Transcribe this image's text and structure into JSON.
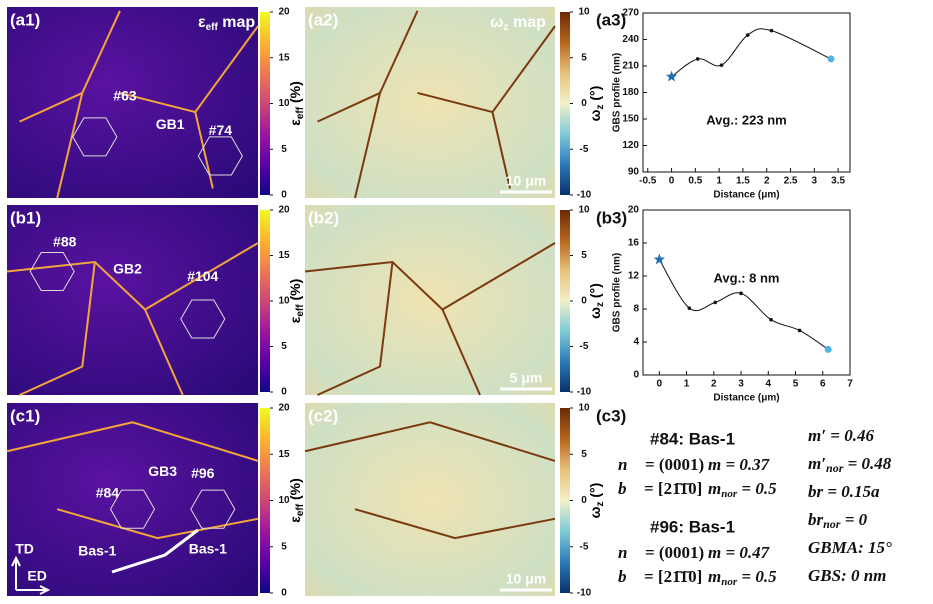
{
  "maps": {
    "eff_title": {
      "main": "ε",
      "sub": "eff",
      "tail": " map"
    },
    "wz_title": {
      "main": "ω",
      "sub": "z",
      "tail": " map"
    },
    "rows": [
      {
        "labels": [
          "(a1)",
          "(a2)",
          "(a3)"
        ],
        "annotations": [
          "#63",
          "GB1",
          "#74"
        ],
        "scale_bar": "10 μm"
      },
      {
        "labels": [
          "(b1)",
          "(b2)",
          "(b3)"
        ],
        "annotations": [
          "#88",
          "GB2",
          "#104"
        ],
        "scale_bar": "5 μm"
      },
      {
        "labels": [
          "(c1)",
          "(c2)",
          "(c3)"
        ],
        "annotations": [
          "#84",
          "GB3",
          "#96",
          "Bas-1",
          "Bas-1",
          "TD",
          "ED"
        ],
        "scale_bar": "10 μm"
      }
    ]
  },
  "colorbars": [
    {
      "label": {
        "main": "ε",
        "sub": "eff",
        "tail": " (%)"
      },
      "lim": [
        0,
        20
      ],
      "ticks": [
        0,
        5,
        10,
        15,
        20
      ],
      "colors": [
        "#0d0887",
        "#5c01a6",
        "#9c179e",
        "#cc4778",
        "#ed7953",
        "#fdb42f",
        "#f0f921"
      ]
    },
    {
      "label": {
        "main": "ω",
        "sub": "z",
        "tail": " (°)"
      },
      "lim": [
        -10,
        10
      ],
      "ticks": [
        -10,
        -5,
        0,
        5,
        10
      ],
      "colors": [
        "#08306b",
        "#2b7bba",
        "#7ecbd8",
        "#f2f0c8",
        "#e8c27a",
        "#b8651c",
        "#6b2a05"
      ]
    }
  ],
  "chart_data": [
    {
      "type": "line",
      "x": [
        0,
        0.55,
        1.05,
        1.6,
        2.1,
        3.35
      ],
      "values": [
        198,
        218,
        211,
        245,
        250,
        218
      ],
      "xlim": [
        -0.6,
        3.75
      ],
      "ylim": [
        90,
        270
      ],
      "xticks": [
        -0.5,
        0,
        0.5,
        1,
        1.5,
        2,
        2.5,
        3,
        3.5
      ],
      "yticks": [
        90,
        120,
        150,
        180,
        210,
        240,
        270
      ],
      "xlabel": "Distance (μm)",
      "ylabel": "GBS profile (nm)",
      "annotation": "Avg.: 223 nm",
      "line_color": "#111111",
      "start_color": "#1f6fb5",
      "end_color": "#4fb3e0"
    },
    {
      "type": "line",
      "x": [
        0,
        1.1,
        2.05,
        3,
        4.1,
        5.15,
        6.2
      ],
      "values": [
        14,
        8.1,
        8.8,
        9.9,
        6.7,
        5.4,
        3.1
      ],
      "xlim": [
        -0.6,
        7
      ],
      "ylim": [
        0,
        20
      ],
      "xticks": [
        0,
        1,
        2,
        3,
        4,
        5,
        6,
        7
      ],
      "yticks": [
        0,
        4,
        8,
        12,
        16,
        20
      ],
      "xlabel": "Distance (μm)",
      "ylabel": "GBS profile (nm)",
      "annotation": "Avg.: 8 nm",
      "line_color": "#111111",
      "start_color": "#1f6fb5",
      "end_color": "#4fb3e0"
    }
  ],
  "c3": {
    "grains": [
      {
        "title": "#84: Bas-1",
        "n_sym": "n⃗",
        "n_eq": " = (0001)",
        "m": "m = 0.37",
        "b_sym": "b⃗",
        "b_eq": " = [21̄1̄0]",
        "mnor": {
          "main": "m",
          "sub": "nor",
          "tail": " = 0.5"
        }
      },
      {
        "title": "#96: Bas-1",
        "n_sym": "n⃗",
        "n_eq": " = (0001)",
        "m": "m = 0.47",
        "b_sym": "b⃗",
        "b_eq": " = [21̄1̄0]",
        "mnor": {
          "main": "m",
          "sub": "nor",
          "tail": " = 0.5"
        }
      }
    ],
    "right": [
      {
        "main": "m′ = 0.46"
      },
      {
        "main": "m′",
        "sub": "nor",
        "tail": " = 0.48"
      },
      {
        "main": "br = 0.15a"
      },
      {
        "main": "br",
        "sub": "nor",
        "tail": " = 0"
      },
      {
        "main": "GBMA: 15°"
      },
      {
        "main": "GBS: 0 nm"
      }
    ]
  }
}
